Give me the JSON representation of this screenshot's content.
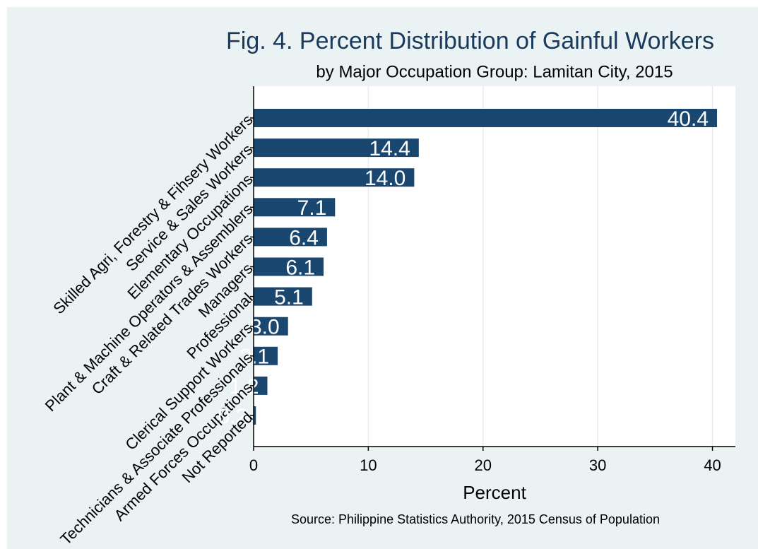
{
  "chart_data": {
    "type": "barh",
    "title": "Fig. 4. Percent Distribution of Gainful Workers",
    "subtitle": "by Major Occupation Group: Lamitan City, 2015",
    "x_label": "Percent",
    "source": "Source: Philippine Statistics Authority, 2015 Census of Population",
    "categories": [
      "Skilled Agri, Forestry & Fihsery Workers",
      "Service & Sales Workers",
      "Elementary Occupations",
      "Plant & Machine Operators & Assemblers",
      "Craft & Related Trades Workers",
      "Managers",
      "Professional",
      "Clerical Support Workers",
      "Technicians & Associate Professionals",
      "Armed Forces Occupations",
      "Not Reported"
    ],
    "values": [
      40.4,
      14.4,
      14.0,
      7.1,
      6.4,
      6.1,
      5.1,
      3.0,
      2.1,
      1.2,
      0.2
    ],
    "value_labels": [
      "40.4",
      "14.4",
      "14.0",
      "7.1",
      "6.4",
      "6.1",
      "5.1",
      "3.0",
      "2.1",
      "1.2",
      "0.2"
    ],
    "color": "#1a476f",
    "xlim": [
      0,
      42
    ],
    "xticks": [
      0,
      10,
      20,
      30,
      40
    ],
    "grid": true
  }
}
